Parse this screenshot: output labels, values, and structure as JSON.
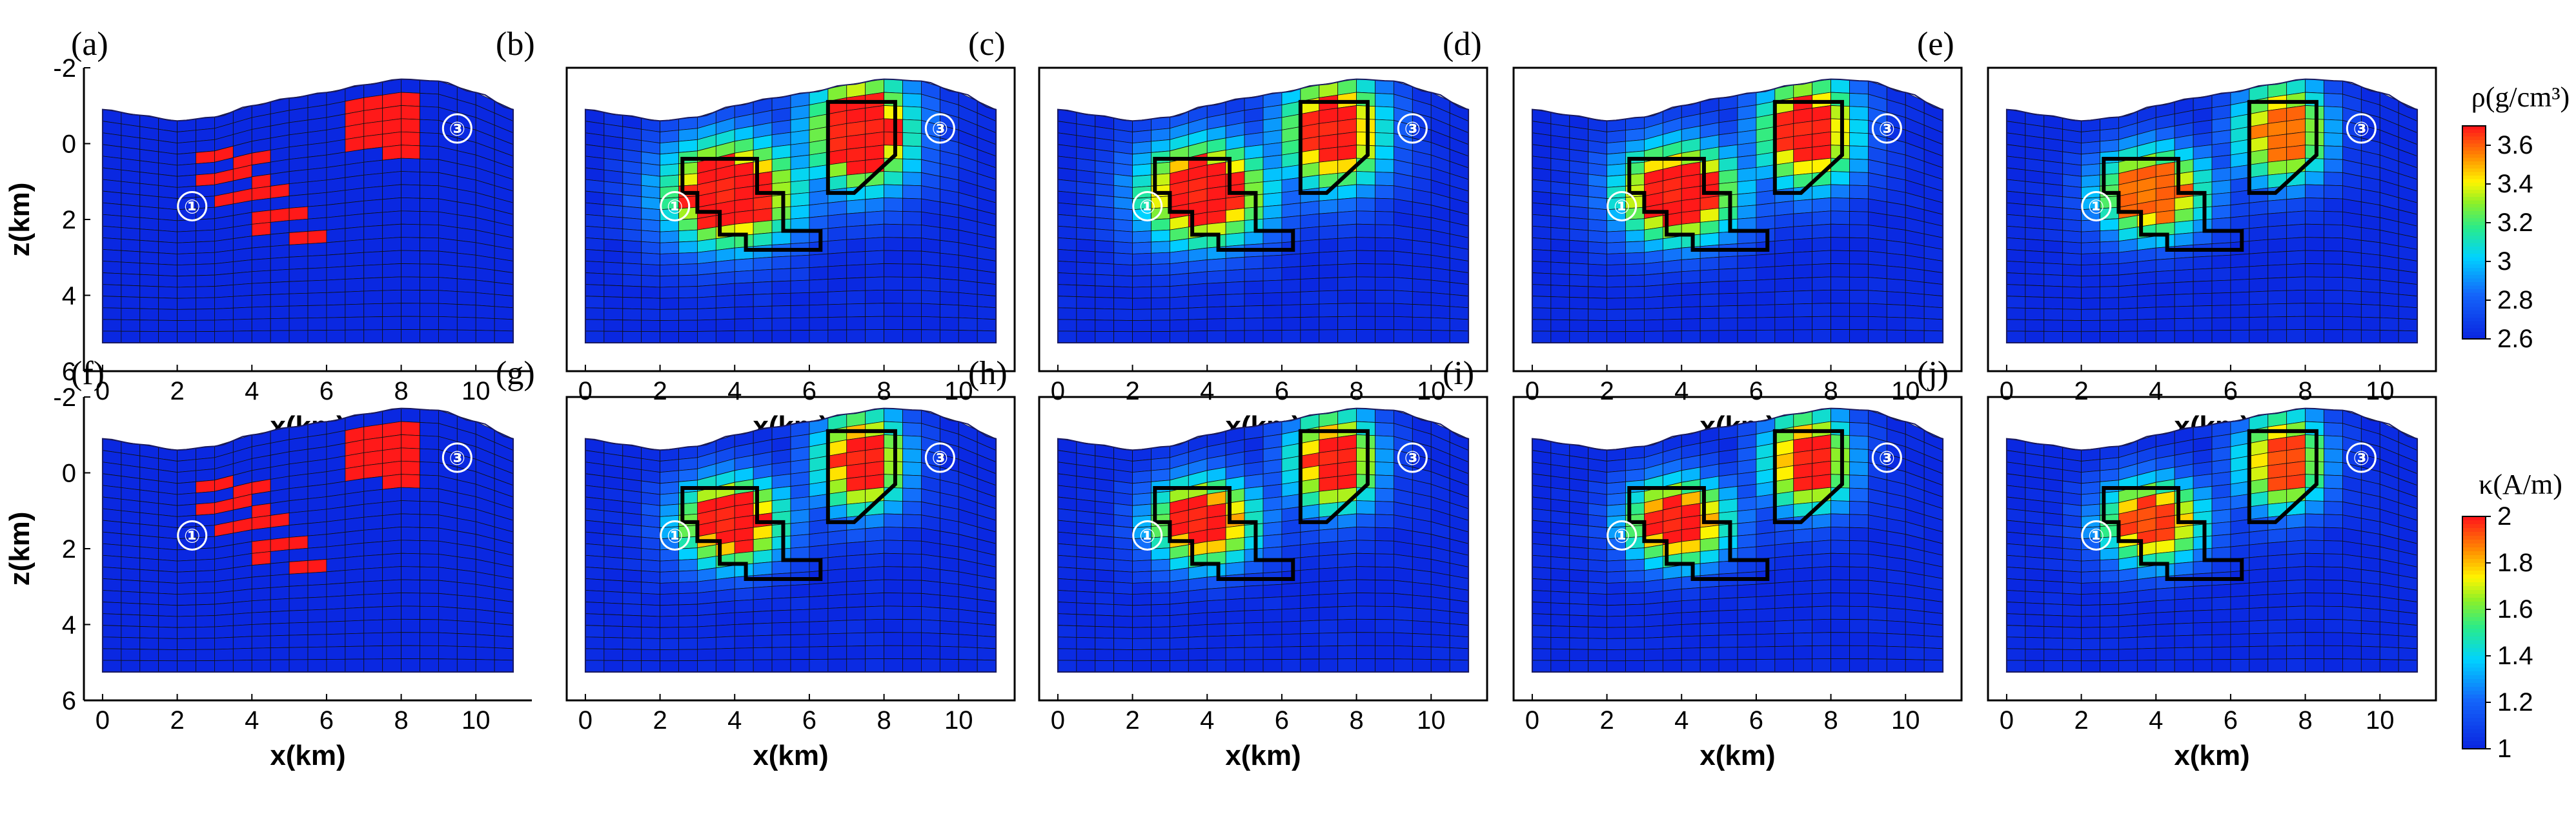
{
  "figure": {
    "panels": [
      {
        "label": "(a)",
        "kind": "true",
        "property": "density"
      },
      {
        "label": "(b)",
        "kind": "inv",
        "property": "density",
        "spread": 0.62,
        "inner": 0.75,
        "scale": 1.0
      },
      {
        "label": "(c)",
        "kind": "inv",
        "property": "density",
        "spread": 0.55,
        "inner": 0.78,
        "scale": 1.0
      },
      {
        "label": "(d)",
        "kind": "inv",
        "property": "density",
        "spread": 0.48,
        "inner": 0.8,
        "scale": 1.0
      },
      {
        "label": "(e)",
        "kind": "inv",
        "property": "density",
        "spread": 0.38,
        "inner": 0.82,
        "scale": 0.9
      },
      {
        "label": "(f)",
        "kind": "true",
        "property": "susceptibility"
      },
      {
        "label": "(g)",
        "kind": "inv",
        "property": "susceptibility",
        "spread": 0.32,
        "inner": 0.8,
        "scale": 1.0
      },
      {
        "label": "(h)",
        "kind": "inv",
        "property": "susceptibility",
        "spread": 0.3,
        "inner": 0.82,
        "scale": 1.0
      },
      {
        "label": "(i)",
        "kind": "inv",
        "property": "susceptibility",
        "spread": 0.28,
        "inner": 0.82,
        "scale": 1.0
      },
      {
        "label": "(j)",
        "kind": "inv",
        "property": "susceptibility",
        "spread": 0.27,
        "inner": 0.84,
        "scale": 0.95
      }
    ],
    "source_labels": [
      "①",
      "③"
    ]
  },
  "chart_data": {
    "type": "heatmap",
    "title": "",
    "xlabel": "x(km)",
    "ylabel": "z(km)",
    "xlim": [
      -0.5,
      11.5
    ],
    "ylim": [
      6,
      -2
    ],
    "x_ticks": [
      "0",
      "2",
      "4",
      "6",
      "8",
      "10"
    ],
    "y_ticks": [
      "-2",
      "0",
      "2",
      "4",
      "6"
    ],
    "x_tick_values": [
      0,
      2,
      4,
      6,
      8,
      10
    ],
    "y_tick_values": [
      -2,
      0,
      2,
      4,
      6
    ],
    "grid": {
      "x_min": 0,
      "x_max": 11,
      "cell_km": 0.5,
      "bottom_km": 5.25,
      "rows": 20
    },
    "topography_km": [
      [
        0,
        -0.9
      ],
      [
        1,
        -0.75
      ],
      [
        2,
        -0.6
      ],
      [
        3,
        -0.7
      ],
      [
        4,
        -1.0
      ],
      [
        5,
        -1.2
      ],
      [
        6,
        -1.35
      ],
      [
        7,
        -1.55
      ],
      [
        8,
        -1.7
      ],
      [
        9,
        -1.65
      ],
      [
        10,
        -1.35
      ],
      [
        11,
        -0.9
      ]
    ],
    "true_models": {
      "body1_cells": [
        [
          2.5,
          0.25,
          0.5
        ],
        [
          2.5,
          0.75,
          1.0
        ],
        [
          3.0,
          1.25,
          1.5
        ],
        [
          3.5,
          1.75,
          2.0
        ],
        [
          4.0,
          2.25,
          2.5
        ]
      ],
      "body1_x_width": 2.0,
      "body1_note": "each row: [x_start_km, z_top_km, z_bottom_km]; width 2 km",
      "body3": {
        "x0": 6.5,
        "x1": 8.25,
        "z0": -1.25,
        "z1": 0.25
      }
    },
    "recovered_outlines": {
      "body1": [
        [
          2.6,
          0.4
        ],
        [
          4.6,
          0.4
        ],
        [
          4.6,
          1.3
        ],
        [
          5.3,
          1.3
        ],
        [
          5.3,
          2.3
        ],
        [
          6.3,
          2.3
        ],
        [
          6.3,
          2.8
        ],
        [
          4.3,
          2.8
        ],
        [
          4.3,
          2.4
        ],
        [
          3.6,
          2.4
        ],
        [
          3.6,
          1.8
        ],
        [
          3.0,
          1.8
        ],
        [
          3.0,
          1.3
        ],
        [
          2.6,
          1.3
        ]
      ],
      "body3": [
        [
          6.5,
          -1.1
        ],
        [
          8.3,
          -1.1
        ],
        [
          8.3,
          0.3
        ],
        [
          7.2,
          1.3
        ],
        [
          6.5,
          1.3
        ]
      ]
    },
    "colorbars": [
      {
        "property": "density",
        "title": "ρ(g/cm³)",
        "min": 2.6,
        "max": 3.7,
        "ticks": [
          "3.6",
          "3.4",
          "3.2",
          "3",
          "2.8",
          "2.6"
        ],
        "tick_values": [
          3.6,
          3.4,
          3.2,
          3.0,
          2.8,
          2.6
        ]
      },
      {
        "property": "susceptibility",
        "title": "κ(A/m)",
        "min": 1.0,
        "max": 2.0,
        "ticks": [
          "2",
          "1.8",
          "1.6",
          "1.4",
          "1.2",
          "1"
        ],
        "tick_values": [
          2.0,
          1.8,
          1.6,
          1.4,
          1.2,
          1.0
        ]
      }
    ],
    "colors": {
      "background": "#ffffff",
      "frame": "#000000",
      "grid_line": "#000000",
      "anomaly": "#ff1a1a",
      "low": "#0b2be0"
    }
  }
}
